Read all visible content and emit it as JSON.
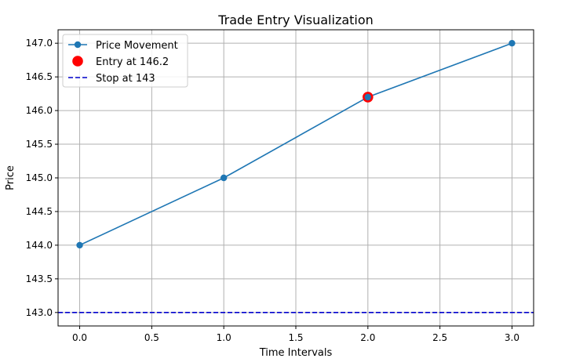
{
  "chart_data": {
    "type": "line",
    "title": "Trade Entry Visualization",
    "xlabel": "Time Intervals",
    "ylabel": "Price",
    "xlim": [
      -0.15,
      3.15
    ],
    "ylim": [
      142.8,
      147.2
    ],
    "xticks": [
      0.0,
      0.5,
      1.0,
      1.5,
      2.0,
      2.5,
      3.0
    ],
    "xtick_labels": [
      "0.0",
      "0.5",
      "1.0",
      "1.5",
      "2.0",
      "2.5",
      "3.0"
    ],
    "yticks": [
      143.0,
      143.5,
      144.0,
      144.5,
      145.0,
      145.5,
      146.0,
      146.5,
      147.0
    ],
    "ytick_labels": [
      "143.0",
      "143.5",
      "144.0",
      "144.5",
      "145.0",
      "145.5",
      "146.0",
      "146.5",
      "147.0"
    ],
    "grid": true,
    "legend_position": "top-left",
    "series": [
      {
        "name": "Price Movement",
        "kind": "line-marker",
        "color": "#1f77b4",
        "x": [
          0,
          1,
          2,
          3
        ],
        "y": [
          144.0,
          145.0,
          146.2,
          147.0
        ]
      },
      {
        "name": "Entry at 146.2",
        "kind": "scatter",
        "color": "#ff0000",
        "x": [
          2
        ],
        "y": [
          146.2
        ]
      },
      {
        "name": "Stop at 143",
        "kind": "hline-dashed",
        "color": "#0000cc",
        "y": 143.0
      }
    ]
  }
}
